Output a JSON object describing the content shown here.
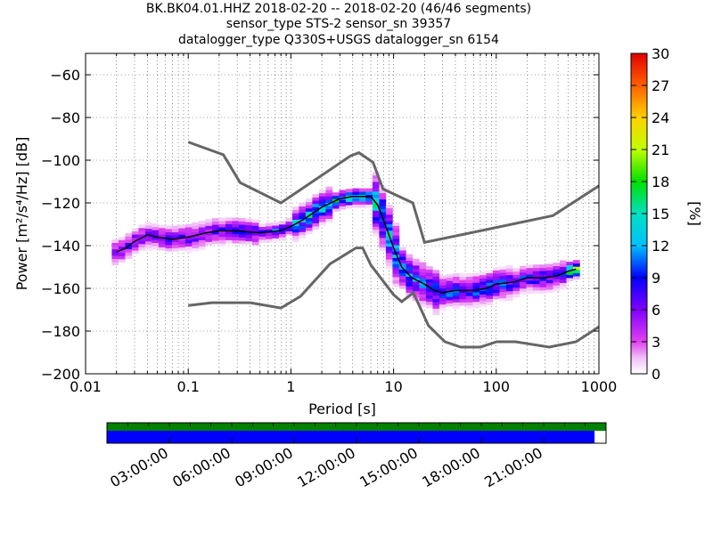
{
  "title": {
    "line1": "BK.BK04.01.HHZ   2018-02-20 -- 2018-02-20  (46/46 segments)",
    "line2": "sensor_type STS-2 sensor_sn 39357",
    "line3": "datalogger_type Q330S+USGS datalogger_sn 6154"
  },
  "chart_data": {
    "type": "heatmap",
    "xlabel": "Period [s]",
    "ylabel": "Power [m²/s⁴/Hz] [dB]",
    "x_scale": "log",
    "xlim": [
      0.01,
      1000
    ],
    "ylim": [
      -200,
      -50
    ],
    "x_ticks": [
      0.01,
      0.1,
      1,
      10,
      100,
      1000
    ],
    "x_tick_labels": [
      "0.01",
      "0.1",
      "1",
      "10",
      "100",
      "1000"
    ],
    "y_ticks": [
      -200,
      -180,
      -160,
      -140,
      -120,
      -100,
      -80,
      -60
    ],
    "y_tick_labels": [
      "−200",
      "−180",
      "−160",
      "−140",
      "−120",
      "−100",
      "−80",
      "−60"
    ],
    "colorbar": {
      "label": "[%]",
      "range": [
        0,
        30
      ],
      "ticks": [
        0,
        3,
        6,
        9,
        12,
        15,
        18,
        21,
        24,
        27,
        30
      ],
      "tick_labels": [
        "0",
        "3",
        "6",
        "9",
        "12",
        "15",
        "18",
        "21",
        "24",
        "27",
        "30"
      ]
    },
    "noise_models": {
      "high": {
        "color": "#666666",
        "x": [
          0.1,
          0.22,
          0.32,
          0.8,
          3.8,
          4.6,
          6.3,
          7.9,
          15.4,
          20,
          354.8,
          1000
        ],
        "y": [
          -91.5,
          -97.4,
          -110.5,
          -120,
          -98,
          -96.5,
          -101,
          -113.5,
          -120,
          -138.5,
          -126,
          -112
        ]
      },
      "low": {
        "color": "#666666",
        "x": [
          0.1,
          0.17,
          0.4,
          0.8,
          1.24,
          2.4,
          4.3,
          5,
          6,
          10,
          12,
          15.6,
          21.9,
          31.6,
          45,
          70,
          101,
          154,
          328,
          600,
          1000
        ],
        "y": [
          -168,
          -166.7,
          -166.7,
          -169.2,
          -163.7,
          -148.6,
          -141.1,
          -141.1,
          -149,
          -163,
          -166.2,
          -162.1,
          -177.5,
          -185,
          -187.5,
          -187.5,
          -185,
          -185,
          -187.5,
          -185,
          -178
        ]
      }
    },
    "mode_curve": {
      "color": "#000000",
      "x": [
        0.02,
        0.025,
        0.03,
        0.04,
        0.05,
        0.07,
        0.1,
        0.15,
        0.2,
        0.3,
        0.5,
        0.8,
        1.0,
        1.3,
        2.0,
        3.0,
        4.0,
        6.0,
        7.0,
        8.0,
        10,
        12,
        15,
        20,
        25,
        30,
        40,
        60,
        80,
        100,
        150,
        200,
        300,
        400,
        500,
        600
      ],
      "y": [
        -143,
        -141,
        -138,
        -135,
        -136,
        -137,
        -136,
        -134,
        -133,
        -133,
        -134,
        -133,
        -131,
        -128,
        -122,
        -118,
        -117,
        -117,
        -121,
        -128,
        -141,
        -150,
        -155,
        -158,
        -161,
        -162,
        -161,
        -161,
        -160,
        -158,
        -157,
        -155,
        -155,
        -154,
        -152,
        -151
      ]
    },
    "density_bins": [
      {
        "x": [
          0.018,
          0.1
        ],
        "y": [
          -146,
          -134
        ],
        "pct": 6
      },
      {
        "x": [
          0.1,
          0.5
        ],
        "y": [
          -140,
          -128
        ],
        "pct": 7
      },
      {
        "x": [
          0.5,
          1.0
        ],
        "y": [
          -137,
          -130
        ],
        "pct": 9
      },
      {
        "x": [
          1.0,
          2.5
        ],
        "y": [
          -132,
          -118
        ],
        "pct": 12
      },
      {
        "x": [
          2.5,
          6.5
        ],
        "y": [
          -122,
          -114
        ],
        "pct": 14
      },
      {
        "x": [
          6.5,
          12
        ],
        "y": [
          -145,
          -118
        ],
        "pct": 12
      },
      {
        "x": [
          12,
          30
        ],
        "y": [
          -164,
          -145
        ],
        "pct": 10
      },
      {
        "x": [
          30,
          150
        ],
        "y": [
          -166,
          -152
        ],
        "pct": 9
      },
      {
        "x": [
          150,
          500
        ],
        "y": [
          -158,
          -146
        ],
        "pct": 8
      },
      {
        "x": [
          500,
          650
        ],
        "y": [
          -153,
          -148
        ],
        "pct": 20
      }
    ]
  },
  "timeline": {
    "ticks": [
      "03:00:00",
      "06:00:00",
      "09:00:00",
      "12:00:00",
      "15:00:00",
      "18:00:00",
      "21:00:00"
    ],
    "data_color": "#0000ff",
    "segment_color": "#008000",
    "coverage_fraction": 0.977
  }
}
